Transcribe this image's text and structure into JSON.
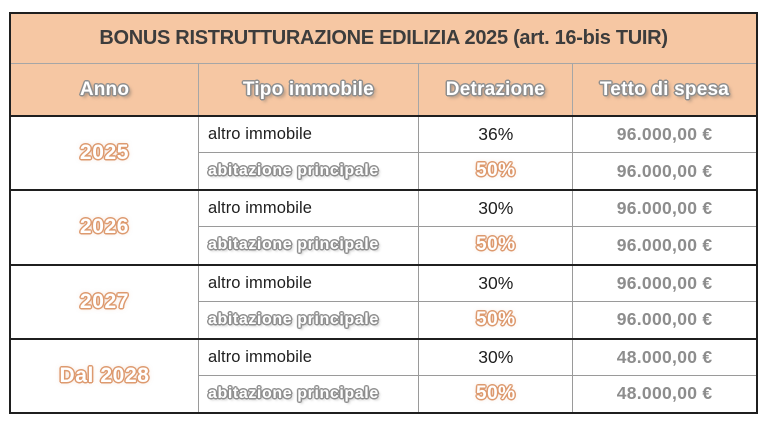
{
  "table": {
    "title": "BONUS RISTRUTTURAZIONE EDILIZIA 2025 (art. 16-bis TUIR)",
    "columns": [
      "Anno",
      "Tipo immobile",
      "Detrazione",
      "Tetto di spesa"
    ],
    "rows": [
      {
        "year": "2025",
        "sub": [
          {
            "tipo": "altro immobile",
            "detrazione": "36%",
            "tetto": "96.000,00 €"
          },
          {
            "tipo": "abitazione principale",
            "detrazione": "50%",
            "tetto": "96.000,00 €"
          }
        ]
      },
      {
        "year": "2026",
        "sub": [
          {
            "tipo": "altro immobile",
            "detrazione": "30%",
            "tetto": "96.000,00 €"
          },
          {
            "tipo": "abitazione principale",
            "detrazione": "50%",
            "tetto": "96.000,00 €"
          }
        ]
      },
      {
        "year": "2027",
        "sub": [
          {
            "tipo": "altro immobile",
            "detrazione": "30%",
            "tetto": "96.000,00 €"
          },
          {
            "tipo": "abitazione principale",
            "detrazione": "50%",
            "tetto": "96.000,00 €"
          }
        ]
      },
      {
        "year": "Dal 2028",
        "sub": [
          {
            "tipo": "altro immobile",
            "detrazione": "30%",
            "tetto": "48.000,00 €"
          },
          {
            "tipo": "abitazione principale",
            "detrazione": "50%",
            "tetto": "48.000,00 €"
          }
        ]
      }
    ]
  },
  "colors": {
    "header_background": "#f6c7a3",
    "accent_outline": "#dd9a6f",
    "outline_gray": "#8f8f8f",
    "money_text": "#8d8d8d",
    "dark_border": "#1f1f1f",
    "title_text": "#3c3c3c"
  },
  "chart_data": {
    "type": "table",
    "title": "BONUS RISTRUTTURAZIONE EDILIZIA 2025 (art. 16-bis TUIR)",
    "columns": [
      "Anno",
      "Tipo immobile",
      "Detrazione",
      "Tetto di spesa"
    ],
    "rows": [
      [
        "2025",
        "altro immobile",
        "36%",
        "96.000,00 €"
      ],
      [
        "2025",
        "abitazione principale",
        "50%",
        "96.000,00 €"
      ],
      [
        "2026",
        "altro immobile",
        "30%",
        "96.000,00 €"
      ],
      [
        "2026",
        "abitazione principale",
        "50%",
        "96.000,00 €"
      ],
      [
        "2027",
        "altro immobile",
        "30%",
        "96.000,00 €"
      ],
      [
        "2027",
        "abitazione principale",
        "50%",
        "96.000,00 €"
      ],
      [
        "Dal 2028",
        "altro immobile",
        "30%",
        "48.000,00 €"
      ],
      [
        "Dal 2028",
        "abitazione principale",
        "50%",
        "48.000,00 €"
      ]
    ]
  }
}
